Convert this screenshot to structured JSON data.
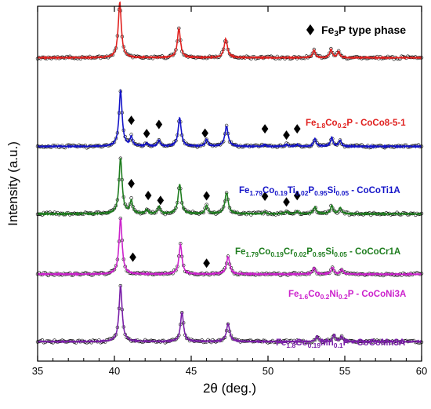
{
  "chart_data": {
    "type": "line",
    "title": "",
    "xlabel": "2θ (deg.)",
    "ylabel": "Intensity (a.u.)",
    "xlim": [
      35,
      60
    ],
    "xticks": [
      35,
      40,
      45,
      50,
      55,
      60
    ],
    "xtick_labels": [
      "35",
      "40",
      "45",
      "50",
      "55",
      "60"
    ],
    "ylim": [
      0,
      1
    ],
    "yticks_shown": false,
    "grid": false,
    "legend": {
      "placement": "top-right",
      "marker": "diamond",
      "label_parts": [
        {
          "text": "Fe",
          "sub": false
        },
        {
          "text": "3",
          "sub": true
        },
        {
          "text": "P type phase",
          "sub": false
        }
      ]
    },
    "series": [
      {
        "label_parts": [
          {
            "text": "Fe",
            "sub": false
          },
          {
            "text": "1.8",
            "sub": true
          },
          {
            "text": "Co",
            "sub": false
          },
          {
            "text": "0.2",
            "sub": true
          },
          {
            "text": "P - CoCo8-5-1",
            "sub": false
          }
        ],
        "color": "#e0201e",
        "baseline": 0.855,
        "peaks": [
          {
            "x": 40.35,
            "h": 0.95,
            "w": 0.12
          },
          {
            "x": 44.2,
            "h": 0.5,
            "w": 0.12
          },
          {
            "x": 47.25,
            "h": 0.32,
            "w": 0.13
          },
          {
            "x": 53.0,
            "h": 0.13,
            "w": 0.1
          },
          {
            "x": 54.1,
            "h": 0.14,
            "w": 0.1
          },
          {
            "x": 54.6,
            "h": 0.1,
            "w": 0.1
          }
        ],
        "fe3p_markers": []
      },
      {
        "label_parts": [
          {
            "text": "Fe",
            "sub": false
          },
          {
            "text": "1.79",
            "sub": true
          },
          {
            "text": "Co",
            "sub": false
          },
          {
            "text": "0.19",
            "sub": true
          },
          {
            "text": "Ti",
            "sub": false
          },
          {
            "text": "0.02",
            "sub": true
          },
          {
            "text": "P",
            "sub": false
          },
          {
            "text": "0.95",
            "sub": true
          },
          {
            "text": "Si",
            "sub": false
          },
          {
            "text": "0.05",
            "sub": true
          },
          {
            "text": " - CoCoTi1A",
            "sub": false
          }
        ],
        "color": "#1414c8",
        "baseline": 0.605,
        "peaks": [
          {
            "x": 40.4,
            "h": 0.95,
            "w": 0.12
          },
          {
            "x": 41.1,
            "h": 0.15,
            "w": 0.1
          },
          {
            "x": 42.1,
            "h": 0.05,
            "w": 0.1
          },
          {
            "x": 42.9,
            "h": 0.1,
            "w": 0.1
          },
          {
            "x": 44.25,
            "h": 0.48,
            "w": 0.12
          },
          {
            "x": 46.0,
            "h": 0.12,
            "w": 0.1
          },
          {
            "x": 47.3,
            "h": 0.34,
            "w": 0.13
          },
          {
            "x": 49.8,
            "h": 0.03,
            "w": 0.1
          },
          {
            "x": 51.2,
            "h": 0.03,
            "w": 0.1
          },
          {
            "x": 51.9,
            "h": 0.03,
            "w": 0.1
          },
          {
            "x": 53.05,
            "h": 0.13,
            "w": 0.1
          },
          {
            "x": 54.15,
            "h": 0.15,
            "w": 0.1
          },
          {
            "x": 54.7,
            "h": 0.1,
            "w": 0.1
          }
        ],
        "fe3p_markers": [
          41.1,
          42.1,
          42.9,
          45.9,
          49.8,
          51.2,
          51.9
        ]
      },
      {
        "label_parts": [
          {
            "text": "Fe",
            "sub": false
          },
          {
            "text": "1.79",
            "sub": true
          },
          {
            "text": "Co",
            "sub": false
          },
          {
            "text": "0.19",
            "sub": true
          },
          {
            "text": "Cr",
            "sub": false
          },
          {
            "text": "0.02",
            "sub": true
          },
          {
            "text": "P",
            "sub": false
          },
          {
            "text": "0.95",
            "sub": true
          },
          {
            "text": "Si",
            "sub": false
          },
          {
            "text": "0.05",
            "sub": true
          },
          {
            "text": " - CoCoCr1A",
            "sub": false
          }
        ],
        "color": "#1e7d1e",
        "baseline": 0.415,
        "peaks": [
          {
            "x": 40.4,
            "h": 0.95,
            "w": 0.12
          },
          {
            "x": 41.1,
            "h": 0.22,
            "w": 0.1
          },
          {
            "x": 42.1,
            "h": 0.07,
            "w": 0.1
          },
          {
            "x": 42.9,
            "h": 0.12,
            "w": 0.1
          },
          {
            "x": 44.25,
            "h": 0.5,
            "w": 0.12
          },
          {
            "x": 46.0,
            "h": 0.14,
            "w": 0.1
          },
          {
            "x": 47.3,
            "h": 0.36,
            "w": 0.13
          },
          {
            "x": 49.8,
            "h": 0.03,
            "w": 0.1
          },
          {
            "x": 51.2,
            "h": 0.04,
            "w": 0.1
          },
          {
            "x": 51.9,
            "h": 0.04,
            "w": 0.1
          },
          {
            "x": 53.05,
            "h": 0.12,
            "w": 0.1
          },
          {
            "x": 54.15,
            "h": 0.14,
            "w": 0.1
          },
          {
            "x": 54.7,
            "h": 0.1,
            "w": 0.1
          }
        ],
        "fe3p_markers": [
          41.1,
          43.0,
          42.2,
          46.0,
          49.8,
          51.2,
          51.9
        ]
      },
      {
        "label_parts": [
          {
            "text": "Fe",
            "sub": false
          },
          {
            "text": "1.6",
            "sub": true
          },
          {
            "text": "Co",
            "sub": false
          },
          {
            "text": "0.2",
            "sub": true
          },
          {
            "text": "Ni",
            "sub": false
          },
          {
            "text": "0.2",
            "sub": true
          },
          {
            "text": "P - CoCoNi3A",
            "sub": false
          }
        ],
        "color": "#cc22cc",
        "baseline": 0.245,
        "peaks": [
          {
            "x": 40.4,
            "h": 0.95,
            "w": 0.12
          },
          {
            "x": 44.3,
            "h": 0.5,
            "w": 0.12
          },
          {
            "x": 47.4,
            "h": 0.3,
            "w": 0.13
          },
          {
            "x": 53.0,
            "h": 0.11,
            "w": 0.1
          },
          {
            "x": 54.2,
            "h": 0.12,
            "w": 0.1
          },
          {
            "x": 54.8,
            "h": 0.08,
            "w": 0.1
          }
        ],
        "fe3p_markers": [
          41.2,
          46.0
        ]
      },
      {
        "label_parts": [
          {
            "text": "Fe",
            "sub": false
          },
          {
            "text": "1.8",
            "sub": true
          },
          {
            "text": "Co",
            "sub": false
          },
          {
            "text": "0.19",
            "sub": true
          },
          {
            "text": "Mn",
            "sub": false
          },
          {
            "text": "0.1",
            "sub": true
          },
          {
            "text": "P - CoCoMn3A",
            "sub": false
          }
        ],
        "color": "#7a1fa8",
        "baseline": 0.055,
        "peaks": [
          {
            "x": 40.4,
            "h": 0.95,
            "w": 0.12
          },
          {
            "x": 44.4,
            "h": 0.5,
            "w": 0.12
          },
          {
            "x": 47.4,
            "h": 0.3,
            "w": 0.13
          },
          {
            "x": 53.2,
            "h": 0.1,
            "w": 0.1
          },
          {
            "x": 54.3,
            "h": 0.12,
            "w": 0.1
          },
          {
            "x": 54.8,
            "h": 0.08,
            "w": 0.1
          }
        ],
        "fe3p_markers": []
      }
    ]
  }
}
